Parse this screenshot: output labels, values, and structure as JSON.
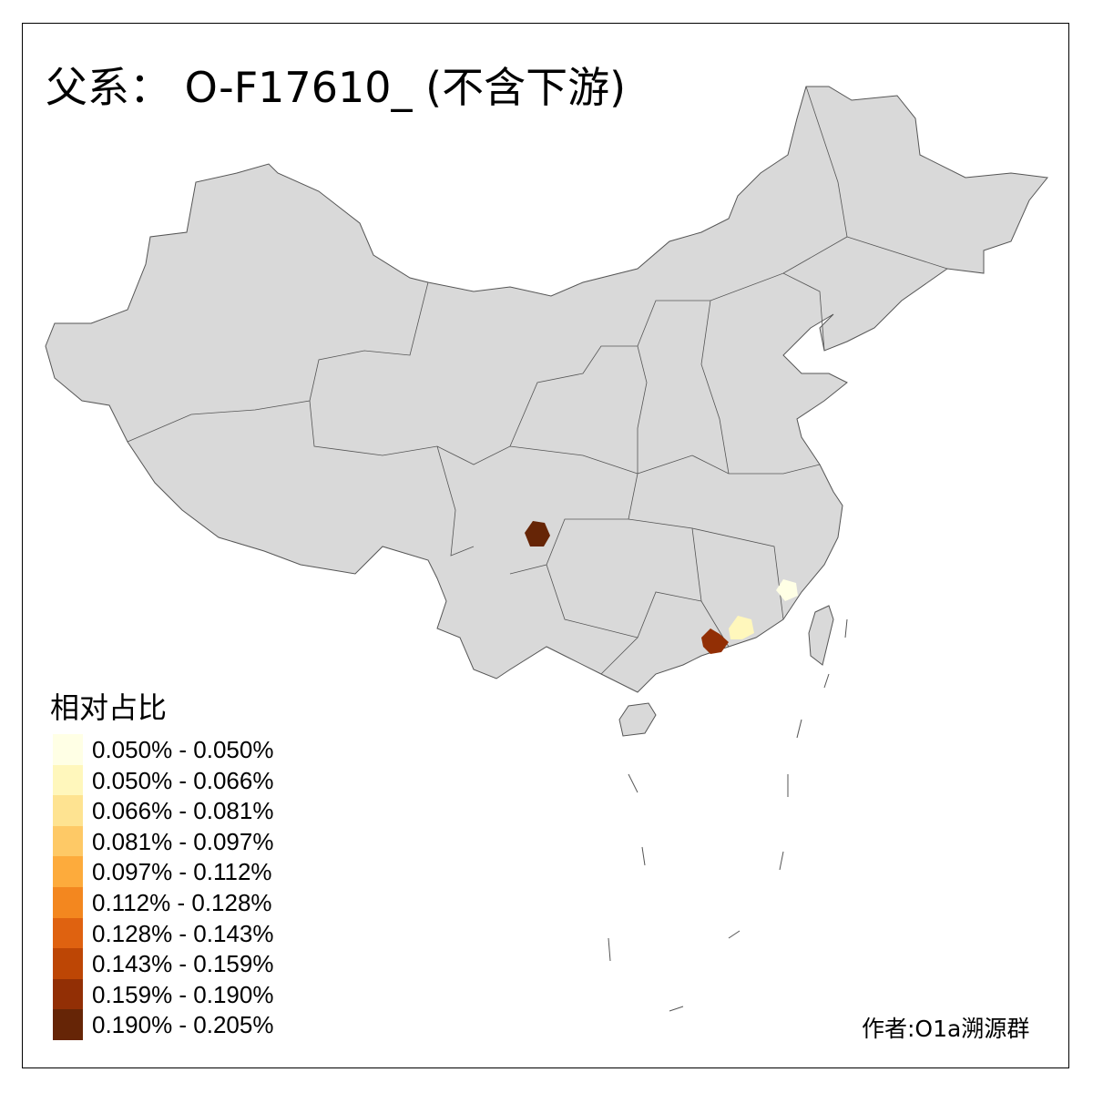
{
  "title": "父系： O-F17610_ (不含下游)",
  "legend": {
    "title": "相对占比",
    "items": [
      {
        "label": "0.050% - 0.050%",
        "color": "#FFFFE5"
      },
      {
        "label": "0.050% - 0.066%",
        "color": "#FFF7BC"
      },
      {
        "label": "0.066% - 0.081%",
        "color": "#FEE391"
      },
      {
        "label": "0.081% - 0.097%",
        "color": "#FEC966"
      },
      {
        "label": "0.097% - 0.112%",
        "color": "#FDAB3C"
      },
      {
        "label": "0.112% - 0.128%",
        "color": "#F3871F"
      },
      {
        "label": "0.128% - 0.143%",
        "color": "#DF6210"
      },
      {
        "label": "0.143% - 0.159%",
        "color": "#BD4605"
      },
      {
        "label": "0.159% - 0.190%",
        "color": "#922F05"
      },
      {
        "label": "0.190% - 0.205%",
        "color": "#662506"
      }
    ]
  },
  "map": {
    "base_color": "#D9D9D9",
    "border_color": "#555555",
    "highlighted_regions": [
      {
        "area": "sichuan-southwest",
        "class_index": 9
      },
      {
        "area": "guangdong-west",
        "class_index": 8
      },
      {
        "area": "guangdong-east",
        "class_index": 1
      },
      {
        "area": "fujian",
        "class_index": 0
      }
    ]
  },
  "author": "作者:O1a溯源群"
}
